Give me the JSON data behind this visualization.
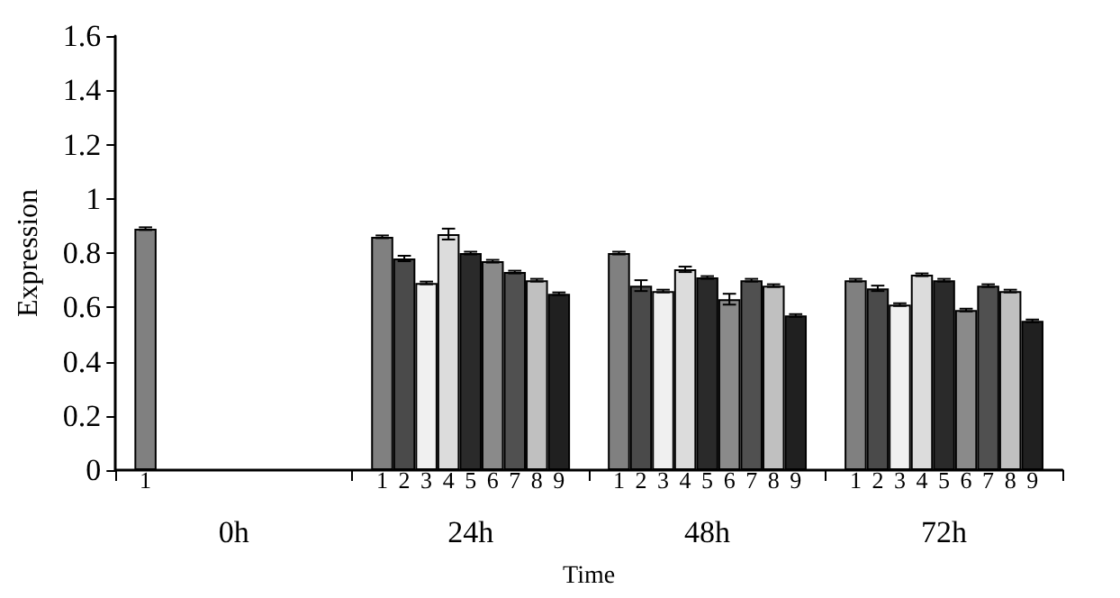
{
  "chart_data": {
    "type": "bar",
    "xlabel": "Time",
    "ylabel": "Expression",
    "categories": [
      "0h",
      "24h",
      "48h",
      "72h"
    ],
    "ylim": [
      0,
      1.6
    ],
    "yticks": [
      0,
      0.2,
      0.4,
      0.6,
      0.8,
      1,
      1.2,
      1.4,
      1.6
    ],
    "grid": false,
    "legend": false,
    "series": [
      {
        "name": "1",
        "color": "#808080",
        "values": [
          0.89,
          0.86,
          0.8,
          0.7
        ],
        "errors": [
          0.005,
          0.005,
          0.005,
          0.005
        ]
      },
      {
        "name": "2",
        "color": "#4a4a4a",
        "values": [
          null,
          0.78,
          0.68,
          0.67
        ],
        "errors": [
          null,
          0.01,
          0.02,
          0.01
        ]
      },
      {
        "name": "3",
        "color": "#f0f0f0",
        "values": [
          null,
          0.69,
          0.66,
          0.61
        ],
        "errors": [
          null,
          0.005,
          0.005,
          0.005
        ]
      },
      {
        "name": "4",
        "color": "#dcdcdc",
        "values": [
          null,
          0.87,
          0.74,
          0.72
        ],
        "errors": [
          null,
          0.02,
          0.01,
          0.005
        ]
      },
      {
        "name": "5",
        "color": "#2a2a2a",
        "values": [
          null,
          0.8,
          0.71,
          0.7
        ],
        "errors": [
          null,
          0.005,
          0.005,
          0.005
        ]
      },
      {
        "name": "6",
        "color": "#8a8a8a",
        "values": [
          null,
          0.77,
          0.63,
          0.59
        ],
        "errors": [
          null,
          0.005,
          0.02,
          0.005
        ]
      },
      {
        "name": "7",
        "color": "#505050",
        "values": [
          null,
          0.73,
          0.7,
          0.68
        ],
        "errors": [
          null,
          0.005,
          0.005,
          0.005
        ]
      },
      {
        "name": "8",
        "color": "#c0c0c0",
        "values": [
          null,
          0.7,
          0.68,
          0.66
        ],
        "errors": [
          null,
          0.005,
          0.005,
          0.005
        ]
      },
      {
        "name": "9",
        "color": "#202020",
        "values": [
          null,
          0.65,
          0.57,
          0.55
        ],
        "errors": [
          null,
          0.005,
          0.005,
          0.005
        ]
      }
    ]
  }
}
